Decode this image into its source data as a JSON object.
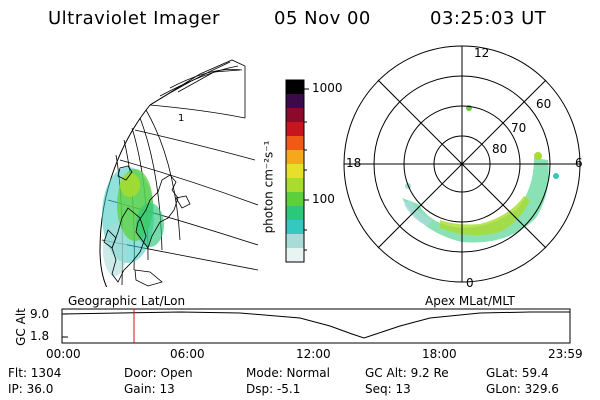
{
  "header": {
    "instrument": "Ultraviolet Imager",
    "date": "05 Nov 00",
    "time": "03:25:03 UT"
  },
  "panels": {
    "left_label": "Geographic Lat/Lon",
    "right_label": "Apex MLat/MLT",
    "globe_meridian_label": "1"
  },
  "colorbar": {
    "unit_label": "photon cm⁻²s⁻¹",
    "ticks": [
      "1000",
      "100"
    ],
    "colors": [
      "#000000",
      "#3b0a4a",
      "#8b0a2a",
      "#c8141e",
      "#ef5a14",
      "#f7a81a",
      "#e6e028",
      "#a8dc2e",
      "#5cd03a",
      "#2cc87a",
      "#34c8c0",
      "#a8dcd8",
      "#ffffff"
    ]
  },
  "polar": {
    "mlt_labels": [
      "12",
      "18",
      "6",
      "0"
    ],
    "lat_labels": [
      "60",
      "70",
      "80"
    ]
  },
  "timeline": {
    "axis_label": "GC Alt",
    "y_ticks": [
      "9.0",
      "1.8"
    ],
    "x_ticks": [
      "00:00",
      "06:00",
      "12:00",
      "18:00",
      "23:59"
    ],
    "marker_color": "#d01010"
  },
  "status": {
    "flt": "Flt: 1304",
    "door": "Door: Open",
    "mode": "Mode: Normal",
    "gcalt": "GC Alt: 9.2 Re",
    "glat": "GLat:  59.4",
    "ip": "IP: 36.0",
    "gain": "Gain: 13",
    "dsp": "Dsp:    -5.1",
    "seq": "Seq: 13",
    "glon": "GLon: 329.6"
  },
  "chart_data": {
    "type": "heatmap",
    "title": "Ultraviolet Imager",
    "colorbar_ticks": [
      1000,
      100
    ],
    "polar_mlt_labels": [
      12,
      18,
      6,
      0
    ],
    "polar_lat_labels": [
      60,
      70,
      80
    ],
    "timeline": {
      "x_ticks": [
        "00:00",
        "06:00",
        "12:00",
        "18:00",
        "23:59"
      ],
      "y_ticks": [
        9.0,
        1.8
      ],
      "marker_time": "03:25:03"
    }
  }
}
